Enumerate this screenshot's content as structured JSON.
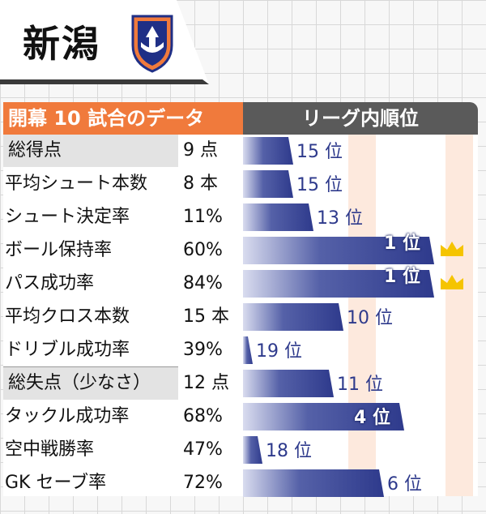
{
  "header": {
    "team_name": "新潟"
  },
  "columns": {
    "stats_label": "開幕 10 試合のデータ",
    "rank_label": "リーグ内順位"
  },
  "colors": {
    "orange": "#f07a3c",
    "bar_dark": "#2e3a8c",
    "bar_light": "#d9dcef",
    "stripe": "#fde9dd",
    "crown": "#f5c400"
  },
  "chart_data": {
    "type": "bar",
    "orientation": "horizontal",
    "title": "開幕 10 試合のデータ",
    "xlabel": "リーグ内順位",
    "rank_range": [
      19,
      1
    ],
    "categories": [
      "総得点",
      "平均シュート本数",
      "シュート決定率",
      "ボール保持率",
      "パス成功率",
      "平均クロス本数",
      "ドリブル成功率",
      "総失点（少なさ）",
      "タックル成功率",
      "空中戦勝率",
      "GK セーブ率"
    ],
    "values": [
      "9 点",
      "8 本",
      "11%",
      "60%",
      "84%",
      "15 本",
      "39%",
      "12 点",
      "68%",
      "47%",
      "72%"
    ],
    "ranks": [
      15,
      15,
      13,
      1,
      1,
      10,
      19,
      11,
      4,
      18,
      6
    ],
    "rank_labels": [
      "15 位",
      "15 位",
      "13 位",
      "1 位",
      "1 位",
      "10 位",
      "19 位",
      "11 位",
      "4 位",
      "18 位",
      "6 位"
    ],
    "highlight_rows": [
      0,
      7
    ],
    "crown_ranks": [
      1
    ]
  }
}
